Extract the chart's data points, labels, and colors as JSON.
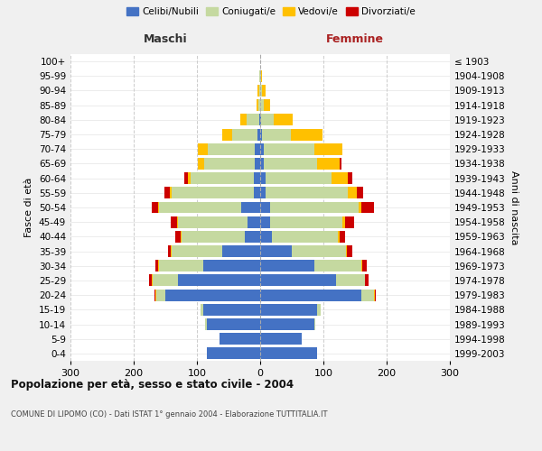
{
  "age_groups": [
    "0-4",
    "5-9",
    "10-14",
    "15-19",
    "20-24",
    "25-29",
    "30-34",
    "35-39",
    "40-44",
    "45-49",
    "50-54",
    "55-59",
    "60-64",
    "65-69",
    "70-74",
    "75-79",
    "80-84",
    "85-89",
    "90-94",
    "95-99",
    "100+"
  ],
  "birth_years": [
    "1999-2003",
    "1994-1998",
    "1989-1993",
    "1984-1988",
    "1979-1983",
    "1974-1978",
    "1969-1973",
    "1964-1968",
    "1959-1963",
    "1954-1958",
    "1949-1953",
    "1944-1948",
    "1939-1943",
    "1934-1938",
    "1929-1933",
    "1924-1928",
    "1919-1923",
    "1914-1918",
    "1909-1913",
    "1904-1908",
    "≤ 1903"
  ],
  "maschi": {
    "celibi": [
      85,
      65,
      85,
      90,
      150,
      130,
      90,
      60,
      25,
      20,
      30,
      10,
      10,
      8,
      8,
      5,
      2,
      0,
      0,
      0,
      0
    ],
    "coniugati": [
      0,
      0,
      2,
      4,
      15,
      40,
      70,
      80,
      100,
      110,
      130,
      130,
      100,
      80,
      75,
      40,
      20,
      3,
      2,
      1,
      0
    ],
    "vedovi": [
      0,
      0,
      0,
      0,
      1,
      1,
      1,
      1,
      1,
      2,
      2,
      3,
      5,
      10,
      15,
      15,
      10,
      3,
      2,
      1,
      0
    ],
    "divorziati": [
      0,
      0,
      0,
      0,
      1,
      4,
      5,
      5,
      8,
      10,
      10,
      8,
      5,
      0,
      0,
      0,
      0,
      0,
      0,
      0,
      0
    ]
  },
  "femmine": {
    "nubili": [
      90,
      65,
      85,
      90,
      160,
      120,
      85,
      50,
      18,
      15,
      15,
      8,
      8,
      5,
      5,
      3,
      1,
      0,
      0,
      0,
      0
    ],
    "coniugate": [
      0,
      0,
      2,
      5,
      20,
      45,
      75,
      85,
      105,
      115,
      140,
      130,
      105,
      85,
      80,
      45,
      20,
      5,
      3,
      1,
      0
    ],
    "vedove": [
      0,
      0,
      0,
      0,
      1,
      1,
      1,
      2,
      3,
      4,
      5,
      15,
      25,
      35,
      45,
      50,
      30,
      10,
      5,
      2,
      0
    ],
    "divorziate": [
      0,
      0,
      0,
      0,
      2,
      5,
      8,
      8,
      8,
      15,
      20,
      10,
      8,
      3,
      0,
      0,
      0,
      0,
      0,
      0,
      0
    ]
  },
  "colors": {
    "celibi": "#4472c4",
    "coniugati": "#c5d9a0",
    "vedovi": "#ffc000",
    "divorziati": "#cc0000"
  },
  "title": "Popolazione per età, sesso e stato civile - 2004",
  "subtitle": "COMUNE DI LIPOMO (CO) - Dati ISTAT 1° gennaio 2004 - Elaborazione TUTTITALIA.IT",
  "xlabel_left": "Maschi",
  "xlabel_right": "Femmine",
  "ylabel_left": "Fasce di età",
  "ylabel_right": "Anni di nascita",
  "xlim": 300,
  "bg_color": "#f0f0f0",
  "plot_bg": "#ffffff",
  "legend_labels": [
    "Celibi/Nubili",
    "Coniugati/e",
    "Vedovi/e",
    "Divorziati/e"
  ]
}
